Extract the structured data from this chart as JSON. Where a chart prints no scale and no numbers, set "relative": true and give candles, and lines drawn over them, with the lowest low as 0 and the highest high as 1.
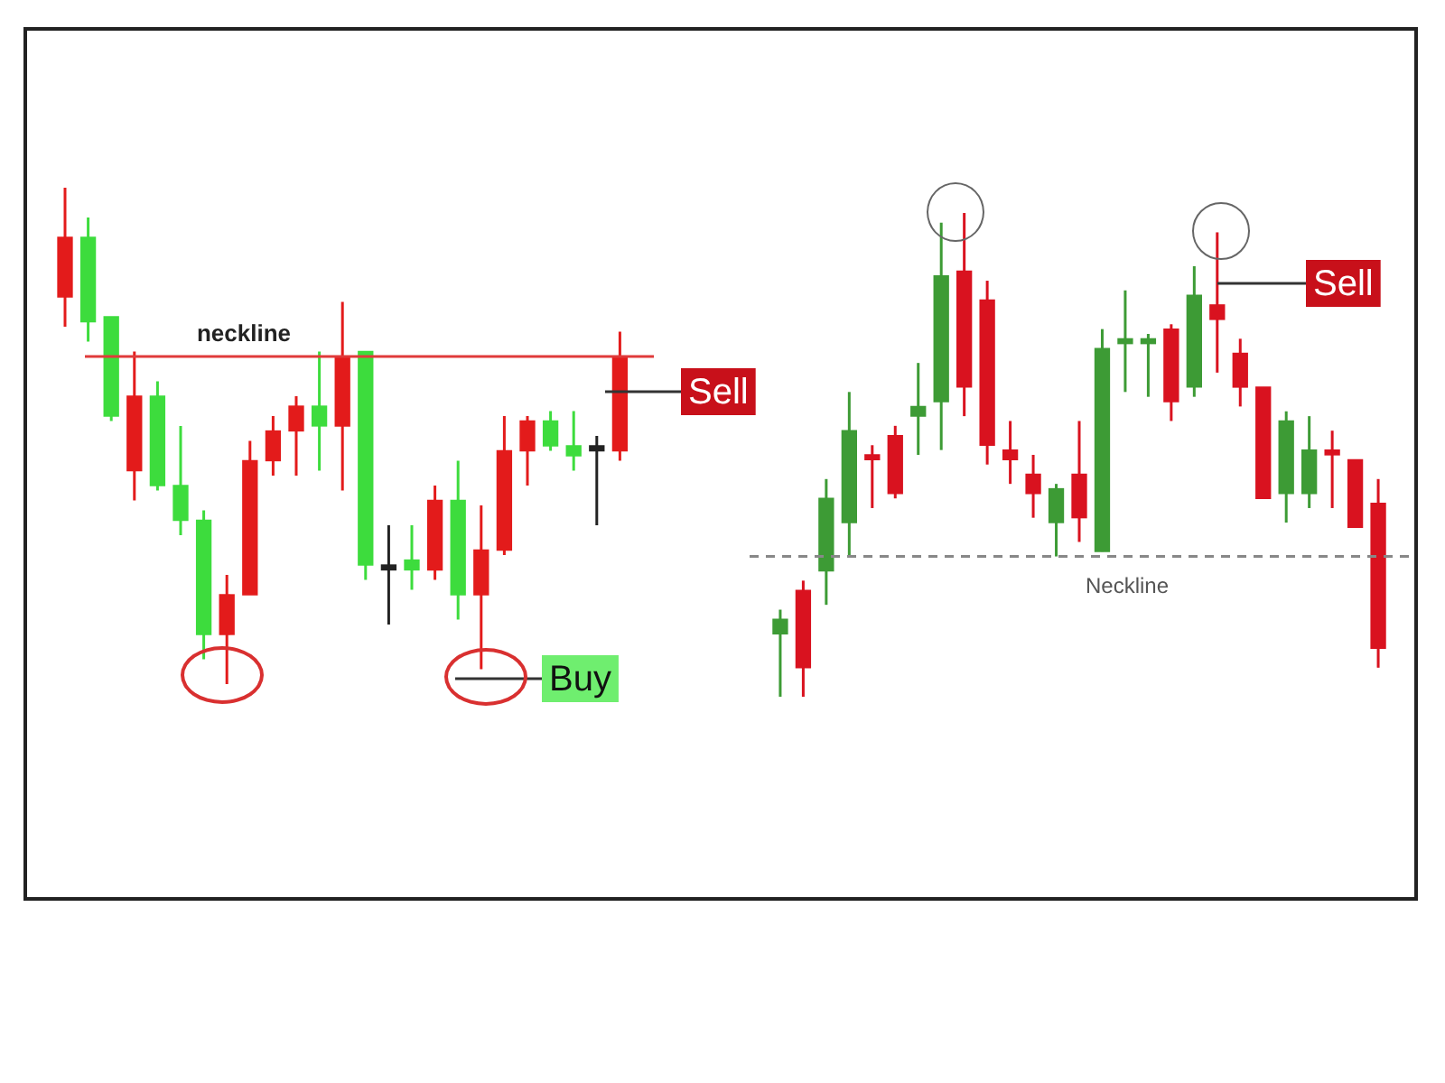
{
  "chart_data": [
    {
      "type": "candlestick",
      "relative": true,
      "tick_labels": false,
      "categories": [
        null,
        null,
        null,
        null,
        null,
        null,
        null,
        null,
        null,
        null,
        null,
        null,
        null,
        null,
        null,
        null,
        null,
        null,
        null,
        null,
        null,
        null,
        null,
        null,
        null
      ],
      "ohlc": [
        [
          0.9,
          1.0,
          0.72,
          0.78
        ],
        [
          0.73,
          0.94,
          0.69,
          0.9
        ],
        [
          0.54,
          0.74,
          0.53,
          0.74
        ],
        [
          0.58,
          0.67,
          0.37,
          0.43
        ],
        [
          0.4,
          0.61,
          0.39,
          0.58
        ],
        [
          0.33,
          0.52,
          0.3,
          0.4
        ],
        [
          0.1,
          0.35,
          0.05,
          0.33
        ],
        [
          0.18,
          0.22,
          0.0,
          0.1
        ],
        [
          0.45,
          0.49,
          0.18,
          0.18
        ],
        [
          0.51,
          0.54,
          0.42,
          0.45
        ],
        [
          0.56,
          0.58,
          0.42,
          0.51
        ],
        [
          0.52,
          0.67,
          0.43,
          0.56
        ],
        [
          0.66,
          0.77,
          0.39,
          0.52
        ],
        [
          0.24,
          0.67,
          0.21,
          0.67
        ],
        [
          0.23,
          0.32,
          0.12,
          0.24
        ],
        [
          0.23,
          0.32,
          0.19,
          0.25
        ],
        [
          0.37,
          0.4,
          0.21,
          0.23
        ],
        [
          0.18,
          0.45,
          0.13,
          0.37
        ],
        [
          0.27,
          0.36,
          0.03,
          0.18
        ],
        [
          0.47,
          0.54,
          0.26,
          0.27
        ],
        [
          0.53,
          0.54,
          0.4,
          0.47
        ],
        [
          0.48,
          0.55,
          0.47,
          0.53
        ],
        [
          0.46,
          0.55,
          0.43,
          0.48
        ],
        [
          0.47,
          0.5,
          0.32,
          0.48
        ],
        [
          0.66,
          0.71,
          0.45,
          0.47
        ]
      ],
      "colors": [
        "#e31b1b",
        "#3ddc3d",
        "#3ddc3d",
        "#e31b1b",
        "#3ddc3d",
        "#3ddc3d",
        "#3ddc3d",
        "#e31b1b",
        "#e31b1b",
        "#e31b1b",
        "#e31b1b",
        "#3ddc3d",
        "#e31b1b",
        "#3ddc3d",
        "#222222",
        "#3ddc3d",
        "#e31b1b",
        "#3ddc3d",
        "#e31b1b",
        "#e31b1b",
        "#e31b1b",
        "#3ddc3d",
        "#3ddc3d",
        "#222222",
        "#e31b1b"
      ],
      "ref_lines": [
        {
          "axis": "y",
          "value": 0.66,
          "label": "neckline",
          "color": "#e03a3a",
          "line_style": "solid"
        }
      ],
      "annotations": [
        "Sell",
        "Buy"
      ]
    },
    {
      "type": "candlestick",
      "relative": true,
      "tick_labels": false,
      "categories": [
        null,
        null,
        null,
        null,
        null,
        null,
        null,
        null,
        null,
        null,
        null,
        null,
        null,
        null,
        null,
        null,
        null,
        null,
        null,
        null,
        null,
        null,
        null,
        null,
        null,
        null,
        null
      ],
      "ohlc": [
        [
          0.13,
          0.18,
          0.0,
          0.16
        ],
        [
          0.22,
          0.24,
          0.0,
          0.06
        ],
        [
          0.26,
          0.45,
          0.19,
          0.41
        ],
        [
          0.36,
          0.63,
          0.29,
          0.55
        ],
        [
          0.5,
          0.52,
          0.39,
          0.49
        ],
        [
          0.54,
          0.56,
          0.41,
          0.42
        ],
        [
          0.58,
          0.69,
          0.5,
          0.6
        ],
        [
          0.61,
          0.98,
          0.51,
          0.87
        ],
        [
          0.88,
          1.0,
          0.58,
          0.64
        ],
        [
          0.82,
          0.86,
          0.48,
          0.52
        ],
        [
          0.51,
          0.57,
          0.44,
          0.49
        ],
        [
          0.46,
          0.5,
          0.37,
          0.42
        ],
        [
          0.36,
          0.44,
          0.29,
          0.43
        ],
        [
          0.46,
          0.57,
          0.32,
          0.37
        ],
        [
          0.3,
          0.76,
          0.3,
          0.72
        ],
        [
          0.73,
          0.84,
          0.63,
          0.74
        ],
        [
          0.73,
          0.75,
          0.62,
          0.74
        ],
        [
          0.76,
          0.77,
          0.57,
          0.61
        ],
        [
          0.64,
          0.89,
          0.62,
          0.83
        ],
        [
          0.81,
          0.96,
          0.67,
          0.78
        ],
        [
          0.71,
          0.74,
          0.6,
          0.64
        ],
        [
          0.64,
          0.64,
          0.41,
          0.41
        ],
        [
          0.42,
          0.59,
          0.36,
          0.57
        ],
        [
          0.42,
          0.58,
          0.39,
          0.51
        ],
        [
          0.51,
          0.55,
          0.39,
          0.5
        ],
        [
          0.49,
          0.49,
          0.35,
          0.35
        ],
        [
          0.4,
          0.45,
          0.06,
          0.1
        ]
      ],
      "colors": [
        "#3d9b35",
        "#d9121f",
        "#3d9b35",
        "#3d9b35",
        "#d9121f",
        "#d9121f",
        "#3d9b35",
        "#3d9b35",
        "#d9121f",
        "#d9121f",
        "#d9121f",
        "#d9121f",
        "#3d9b35",
        "#d9121f",
        "#3d9b35",
        "#3d9b35",
        "#3d9b35",
        "#d9121f",
        "#3d9b35",
        "#d9121f",
        "#d9121f",
        "#d9121f",
        "#3d9b35",
        "#3d9b35",
        "#d9121f",
        "#d9121f",
        "#d9121f"
      ],
      "ref_lines": [
        {
          "axis": "y",
          "value": 0.29,
          "label": "Neckline",
          "color": "#888888",
          "line_style": "dashed"
        }
      ],
      "annotations": [
        "Sell"
      ]
    }
  ]
}
